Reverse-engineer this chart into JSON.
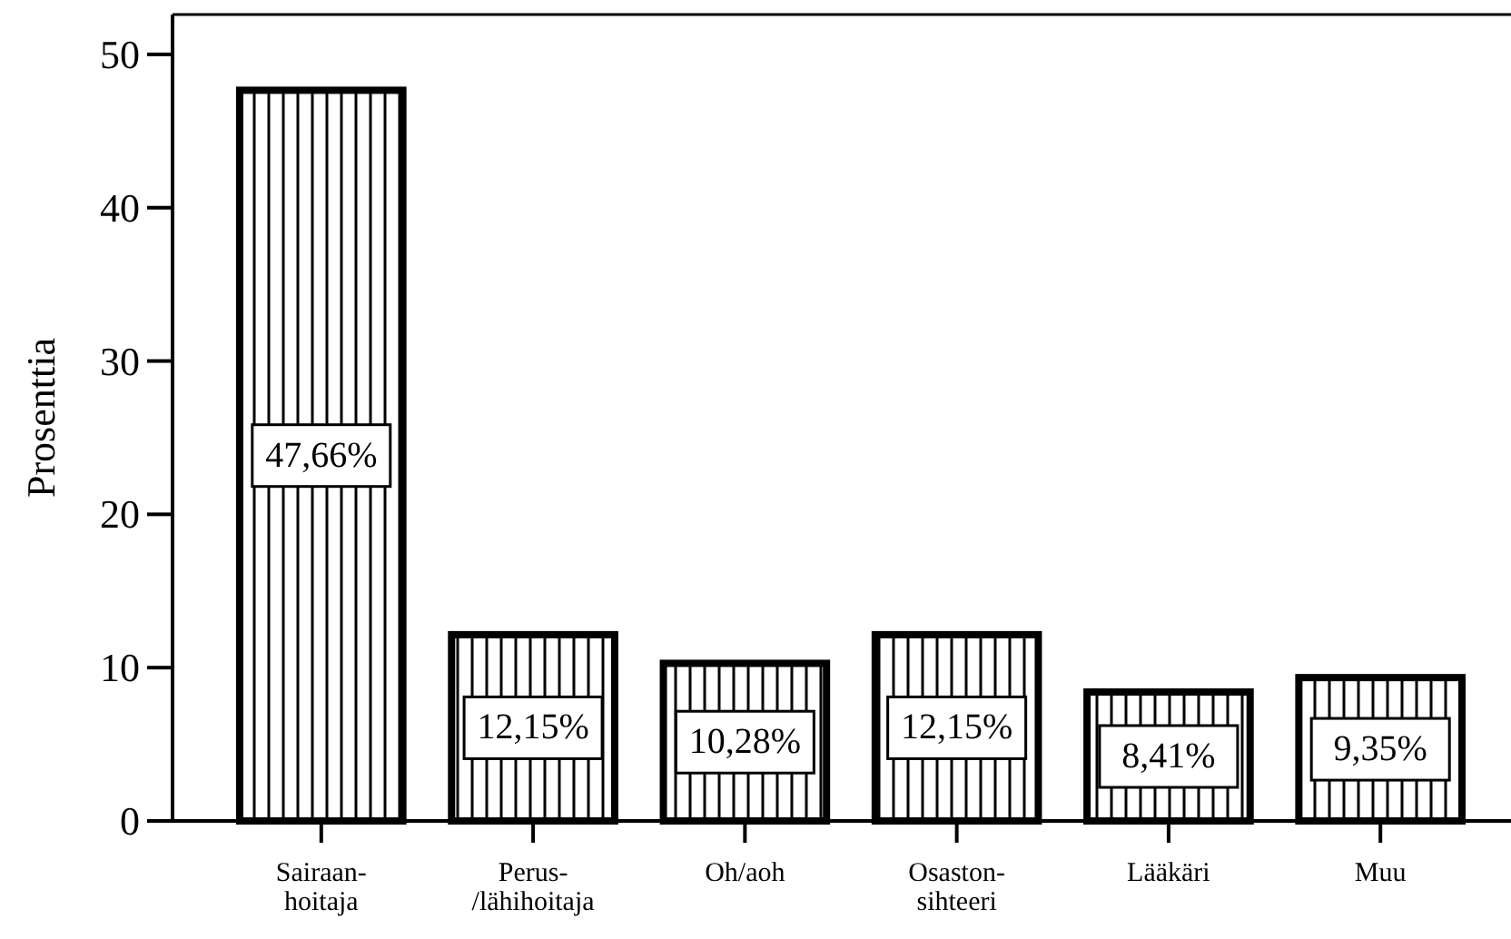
{
  "chart_data": {
    "type": "bar",
    "ylabel": "Prosenttia",
    "categories": [
      "Sairaan-hoitaja",
      "Perus-/lähihoitaja",
      "Oh/aoh",
      "Osaston-sihteeri",
      "Lääkäri",
      "Muu"
    ],
    "values": [
      47.66,
      12.15,
      10.28,
      12.15,
      8.41,
      9.35
    ],
    "value_labels": [
      "47,66%",
      "12,15%",
      "10,28%",
      "12,15%",
      "8,41%",
      "9,35%"
    ],
    "color": "#000000",
    "ylim": [
      0,
      52.6
    ],
    "yticks": [
      0,
      10,
      20,
      30,
      40,
      50
    ],
    "grid": false
  }
}
